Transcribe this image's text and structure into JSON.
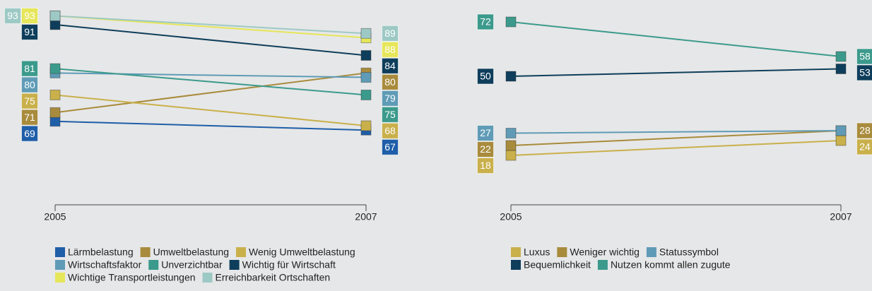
{
  "chart_data": [
    {
      "type": "slope",
      "x": [
        "2005",
        "2007"
      ],
      "ylim": [
        50,
        95
      ],
      "series": [
        {
          "name": "Lärmbelastung",
          "color": "#1f5ea8",
          "values": [
            69,
            67
          ]
        },
        {
          "name": "Umweltbelastung",
          "color": "#a88b3c",
          "values": [
            71,
            80
          ]
        },
        {
          "name": "Wenig Umweltbelastung",
          "color": "#c9b04b",
          "values": [
            75,
            68
          ]
        },
        {
          "name": "Wirtschaftsfaktor",
          "color": "#5f9bb6",
          "values": [
            80,
            79
          ]
        },
        {
          "name": "Unverzichtbar",
          "color": "#3b9a8c",
          "values": [
            81,
            75
          ]
        },
        {
          "name": "Wichtig für Wirtschaft",
          "color": "#0e3e5b",
          "values": [
            91,
            84
          ]
        },
        {
          "name": "Wichtige Transportleistungen",
          "color": "#e6e65a",
          "values": [
            93,
            88
          ]
        },
        {
          "name": "Erreichbarkeit Ortschaften",
          "color": "#9dc9c5",
          "values": [
            93,
            89
          ]
        }
      ]
    },
    {
      "type": "slope",
      "x": [
        "2005",
        "2007"
      ],
      "ylim": [
        0,
        80
      ],
      "series": [
        {
          "name": "Luxus",
          "color": "#c9b04b",
          "values": [
            18,
            24
          ]
        },
        {
          "name": "Weniger wichtig",
          "color": "#a88b3c",
          "values": [
            22,
            28
          ]
        },
        {
          "name": "Statussymbol",
          "color": "#5f9bb6",
          "values": [
            27,
            28
          ]
        },
        {
          "name": "Bequemlichkeit",
          "color": "#0e3e5b",
          "values": [
            50,
            53
          ]
        },
        {
          "name": "Nutzen kommt allen zugute",
          "color": "#3b9a8c",
          "values": [
            72,
            58
          ]
        }
      ]
    }
  ]
}
